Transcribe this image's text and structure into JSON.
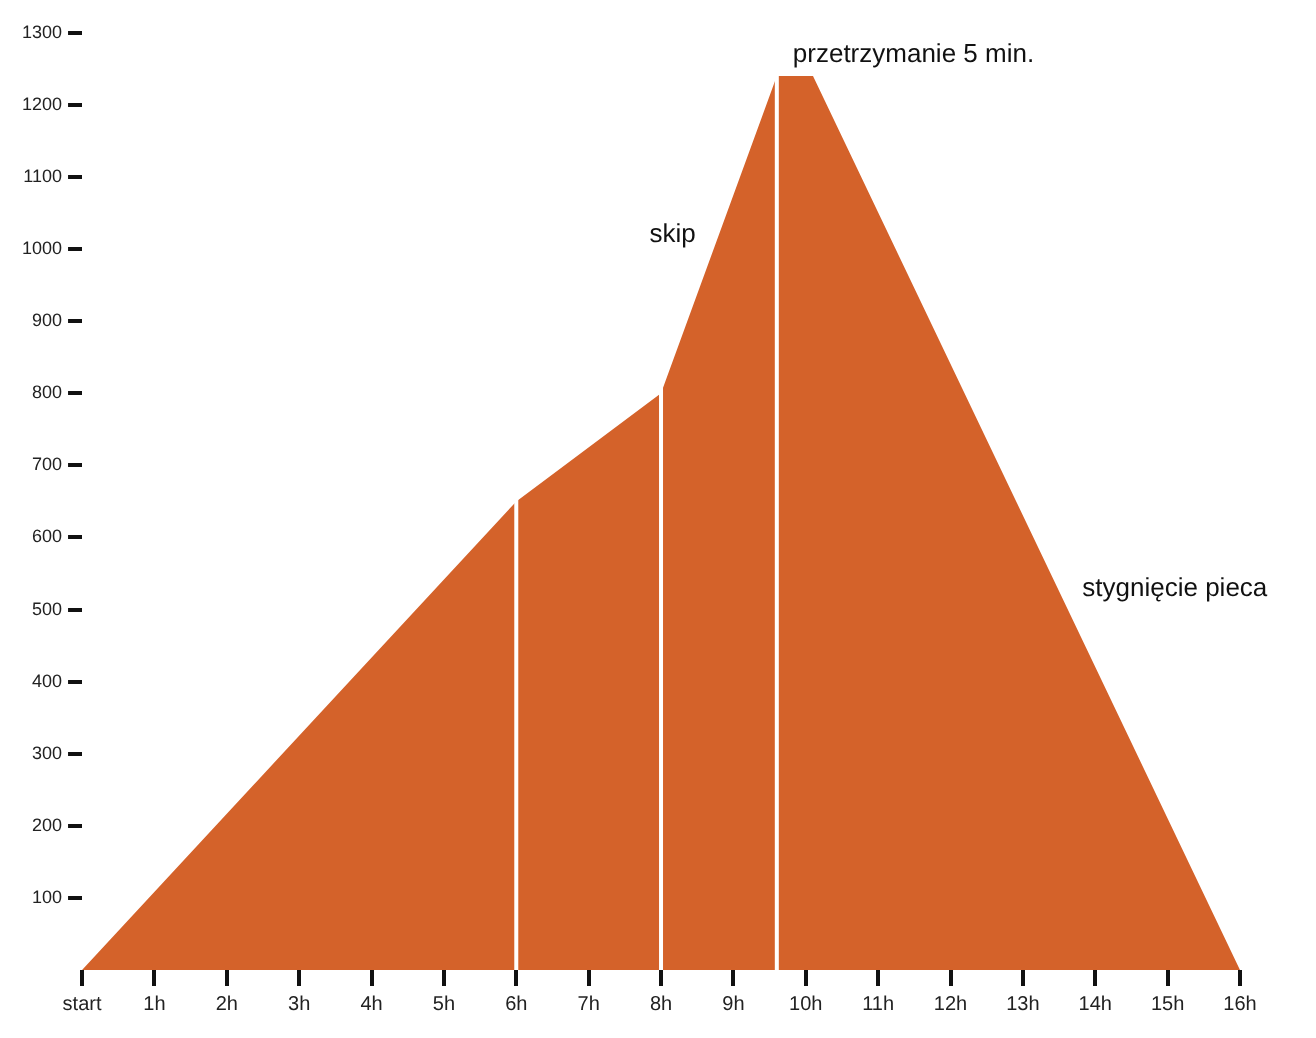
{
  "chart_data": {
    "type": "area",
    "x": [
      0,
      6,
      8,
      9.6,
      10.1,
      16
    ],
    "series": [
      {
        "color": "#d4622a",
        "values": [
          0,
          650,
          800,
          1240,
          1240,
          0
        ]
      }
    ],
    "xlim": [
      0,
      16
    ],
    "xticks": [
      {
        "value": 0,
        "label": "start"
      },
      {
        "value": 1,
        "label": "1h"
      },
      {
        "value": 2,
        "label": "2h"
      },
      {
        "value": 3,
        "label": "3h"
      },
      {
        "value": 4,
        "label": "4h"
      },
      {
        "value": 5,
        "label": "5h"
      },
      {
        "value": 6,
        "label": "6h"
      },
      {
        "value": 7,
        "label": "7h"
      },
      {
        "value": 8,
        "label": "8h"
      },
      {
        "value": 9,
        "label": "9h"
      },
      {
        "value": 10,
        "label": "10h"
      },
      {
        "value": 11,
        "label": "11h"
      },
      {
        "value": 12,
        "label": "12h"
      },
      {
        "value": 13,
        "label": "13h"
      },
      {
        "value": 14,
        "label": "14h"
      },
      {
        "value": 15,
        "label": "15h"
      },
      {
        "value": 16,
        "label": "16h"
      }
    ],
    "ylim": [
      0,
      1300
    ],
    "yticks": [
      100,
      200,
      300,
      400,
      500,
      600,
      700,
      800,
      900,
      1000,
      1100,
      1200,
      1300
    ],
    "grid": false,
    "legend": false,
    "marker": "none",
    "ref_lines": [
      {
        "axis": "x",
        "value": 6,
        "color": "#ffffff"
      },
      {
        "axis": "x",
        "value": 8,
        "color": "#ffffff"
      },
      {
        "axis": "x",
        "value": 9.6,
        "color": "#ffffff"
      }
    ],
    "annotations": [
      {
        "text": "skip",
        "x": 8.7,
        "y": 990
      },
      {
        "text": "przetrzymanie 5 min.",
        "x": 9.6,
        "y": 1240
      },
      {
        "text": "stygnięcie pieca",
        "x": 13.6,
        "y": 500
      }
    ]
  }
}
